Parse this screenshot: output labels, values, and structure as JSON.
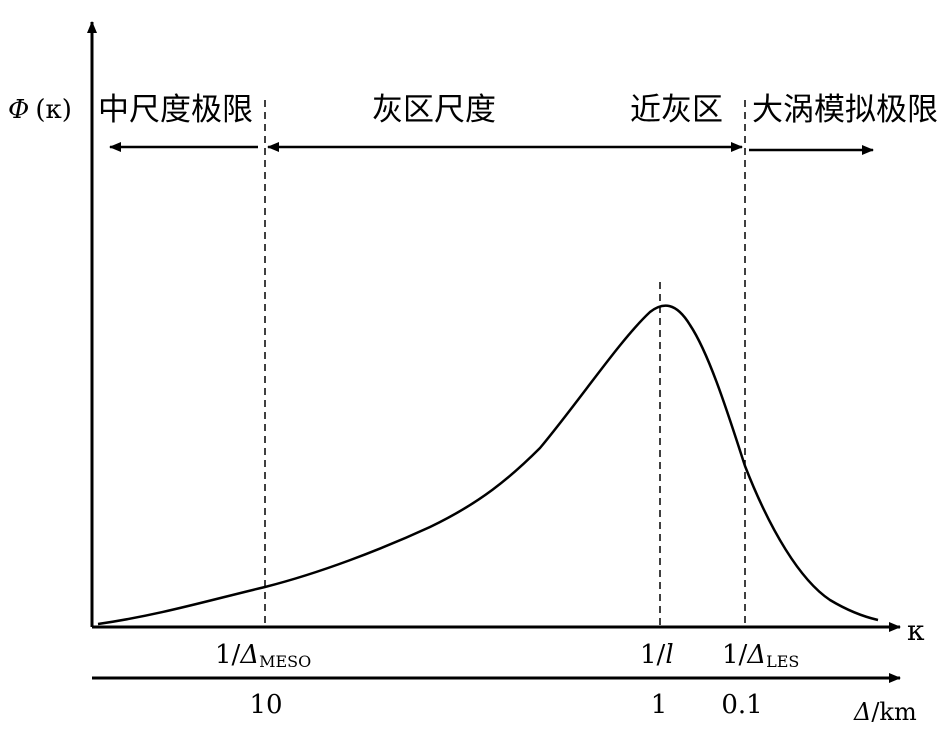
{
  "yaxis": {
    "label_symbol": "Φ",
    "label_arg": "(κ)"
  },
  "xaxis": {
    "label": "κ"
  },
  "regions": {
    "meso_limit": "中尺度极限",
    "gray_zone": "灰区尺度",
    "near_gray": "近灰区",
    "les_limit": "大涡模拟极限"
  },
  "markers": {
    "meso": {
      "prefix": "1/",
      "delta": "Δ",
      "sub": "MESO"
    },
    "l": {
      "prefix": "1/",
      "var": "l"
    },
    "les": {
      "prefix": "1/",
      "delta": "Δ",
      "sub": "LES"
    }
  },
  "scale": {
    "label_delta": "Δ",
    "label_unit": "/km",
    "ticks": [
      "10",
      "1",
      "0.1"
    ]
  },
  "colors": {
    "ink": "#000000",
    "background": "#ffffff"
  }
}
